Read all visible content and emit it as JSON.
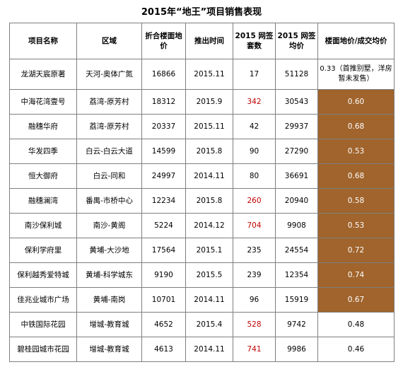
{
  "title": "2015年“地王”项目销售表现",
  "headers": {
    "name": "项目名称",
    "area": "区域",
    "land_price": "折合楼面地价",
    "launch": "推出时间",
    "units": "2015 网签套数",
    "avg_price": "2015 网签均价",
    "ratio": "楼面地价/成交均价"
  },
  "rows": [
    {
      "name": "龙湖天宸原著",
      "area": "天河-奥体广氮",
      "land_price": "16866",
      "launch": "2015.11",
      "units": "17",
      "avg_price": "51128",
      "ratio": "0.33（首推别墅，洋房暂未发售）"
    },
    {
      "name": "中海花湾壹号",
      "area": "荔湾-原芳村",
      "land_price": "18312",
      "launch": "2015.9",
      "units": "342",
      "avg_price": "30543",
      "ratio": "0.60"
    },
    {
      "name": "融穗华府",
      "area": "荔湾-原芳村",
      "land_price": "20337",
      "launch": "2015.11",
      "units": "42",
      "avg_price": "29937",
      "ratio": "0.68"
    },
    {
      "name": "华发四季",
      "area": "白云-白云大道",
      "land_price": "14599",
      "launch": "2015.8",
      "units": "90",
      "avg_price": "27290",
      "ratio": "0.53"
    },
    {
      "name": "恒大御府",
      "area": "白云-同和",
      "land_price": "24997",
      "launch": "2014.11",
      "units": "80",
      "avg_price": "36691",
      "ratio": "0.68"
    },
    {
      "name": "融穗澜湾",
      "area": "番禺-市桥中心",
      "land_price": "12234",
      "launch": "2015.8",
      "units": "260",
      "avg_price": "20940",
      "ratio": "0.58"
    },
    {
      "name": "南沙保利城",
      "area": "南沙-黄阁",
      "land_price": "5224",
      "launch": "2014.12",
      "units": "704",
      "avg_price": "9908",
      "ratio": "0.53"
    },
    {
      "name": "保利学府里",
      "area": "黄埔-大沙地",
      "land_price": "17564",
      "launch": "2015.1",
      "units": "235",
      "avg_price": "24554",
      "ratio": "0.72"
    },
    {
      "name": "保利越秀爱特城",
      "area": "黄埔-科学城东",
      "land_price": "9190",
      "launch": "2015.5",
      "units": "239",
      "avg_price": "12354",
      "ratio": "0.74"
    },
    {
      "name": "佳兆业城市广场",
      "area": "黄埔-南岗",
      "land_price": "10701",
      "launch": "2014.11",
      "units": "96",
      "avg_price": "15919",
      "ratio": "0.67"
    },
    {
      "name": "中铁国际花园",
      "area": "增城-教育城",
      "land_price": "4652",
      "launch": "2015.4",
      "units": "528",
      "avg_price": "9742",
      "ratio": "0.48"
    },
    {
      "name": "碧桂园城市花园",
      "area": "增城-教育城",
      "land_price": "4613",
      "launch": "2014.11",
      "units": "741",
      "avg_price": "9986",
      "ratio": "0.46"
    }
  ],
  "colors": {
    "highlight": "#a0642c",
    "red_text": "#c00000",
    "border": "#7f7f7f"
  }
}
